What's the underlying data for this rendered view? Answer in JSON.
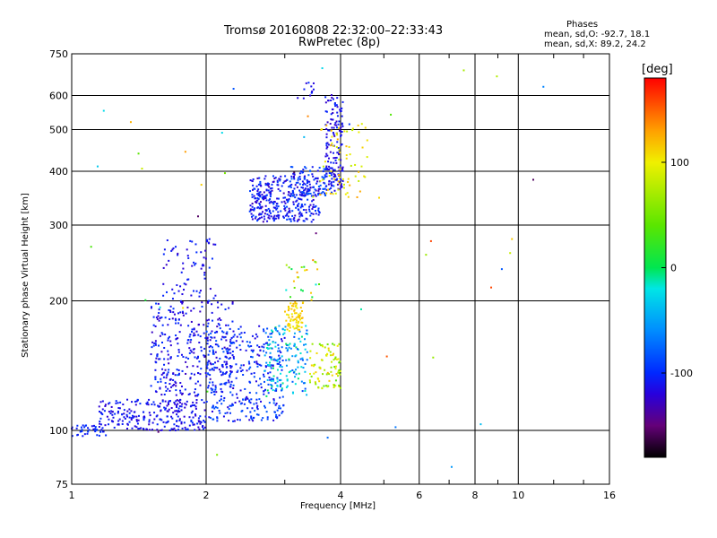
{
  "header": {
    "title": "Tromsø 20160808 22:32:00–22:33:43",
    "subtitle": "RwPretec (8p)"
  },
  "phases_info": {
    "heading": "Phases",
    "line_o": "mean, sd,O: -92.7, 18.1",
    "line_x": "mean, sd,X:  89.2, 24.2"
  },
  "colorbar": {
    "unit_label": "[deg]",
    "ticks": [
      {
        "value": 100,
        "label": "100"
      },
      {
        "value": 0,
        "label": "0"
      },
      {
        "value": -100,
        "label": "-100"
      }
    ],
    "range": [
      -180,
      180
    ]
  },
  "colors": {
    "grid": "#000000",
    "background": "#ffffff"
  },
  "chart_data": {
    "type": "scatter",
    "title": "Tromsø 20160808 22:32:00–22:33:43",
    "subtitle": "RwPretec (8p)",
    "xlabel": "Frequency [MHz]",
    "ylabel": "Stationary phase Virtual Height [km]",
    "x_scale": "log",
    "y_scale": "log",
    "xlim": [
      1,
      16
    ],
    "ylim": [
      75,
      750
    ],
    "x_ticks": [
      1,
      2,
      4,
      6,
      8,
      10,
      16
    ],
    "y_ticks": [
      75,
      100,
      200,
      300,
      400,
      500,
      600,
      750
    ],
    "x_grid": [
      2,
      4,
      6,
      8,
      10
    ],
    "y_grid": [
      100,
      200,
      300,
      400,
      500,
      600
    ],
    "color_by": "phase_deg",
    "series": [
      {
        "regions": [
          {
            "fmin": 1.0,
            "fmax": 1.2,
            "hmin": 97,
            "hmax": 103,
            "phase": -105,
            "spread": 12,
            "n": 40
          },
          {
            "fmin": 1.15,
            "fmax": 2.0,
            "hmin": 100,
            "hmax": 118,
            "phase": -112,
            "spread": 15,
            "n": 260
          },
          {
            "fmin": 1.5,
            "fmax": 2.3,
            "hmin": 120,
            "hmax": 200,
            "phase": -110,
            "spread": 18,
            "n": 330
          },
          {
            "fmin": 1.6,
            "fmax": 2.1,
            "hmin": 200,
            "hmax": 280,
            "phase": -112,
            "spread": 15,
            "n": 70
          },
          {
            "fmin": 2.0,
            "fmax": 3.0,
            "hmin": 105,
            "hmax": 175,
            "phase": -100,
            "spread": 22,
            "n": 340
          },
          {
            "fmin": 2.7,
            "fmax": 3.4,
            "hmin": 120,
            "hmax": 175,
            "phase": -45,
            "spread": 45,
            "n": 160
          },
          {
            "fmin": 3.0,
            "fmax": 3.3,
            "hmin": 170,
            "hmax": 200,
            "phase": 110,
            "spread": 12,
            "n": 70
          },
          {
            "fmin": 3.4,
            "fmax": 4.0,
            "hmin": 125,
            "hmax": 160,
            "phase": 80,
            "spread": 45,
            "n": 90
          },
          {
            "fmin": 3.0,
            "fmax": 3.6,
            "hmin": 200,
            "hmax": 250,
            "phase": 60,
            "spread": 80,
            "n": 25
          },
          {
            "fmin": 2.5,
            "fmax": 3.6,
            "hmin": 305,
            "hmax": 390,
            "phase": -110,
            "spread": 22,
            "n": 360
          },
          {
            "fmin": 3.1,
            "fmax": 3.9,
            "hmin": 350,
            "hmax": 410,
            "phase": -95,
            "spread": 20,
            "n": 90
          },
          {
            "fmin": 3.7,
            "fmax": 4.05,
            "hmin": 360,
            "hmax": 610,
            "phase": -115,
            "spread": 15,
            "n": 150
          },
          {
            "fmin": 3.2,
            "fmax": 3.5,
            "hmin": 590,
            "hmax": 650,
            "phase": -110,
            "spread": 12,
            "n": 12
          },
          {
            "fmin": 3.6,
            "fmax": 4.6,
            "hmin": 340,
            "hmax": 520,
            "phase": 105,
            "spread": 25,
            "n": 70
          },
          {
            "fmin": 1.0,
            "fmax": 12.0,
            "hmin": 80,
            "hmax": 700,
            "phase": 0,
            "spread": 160,
            "n": 45
          }
        ]
      }
    ]
  }
}
